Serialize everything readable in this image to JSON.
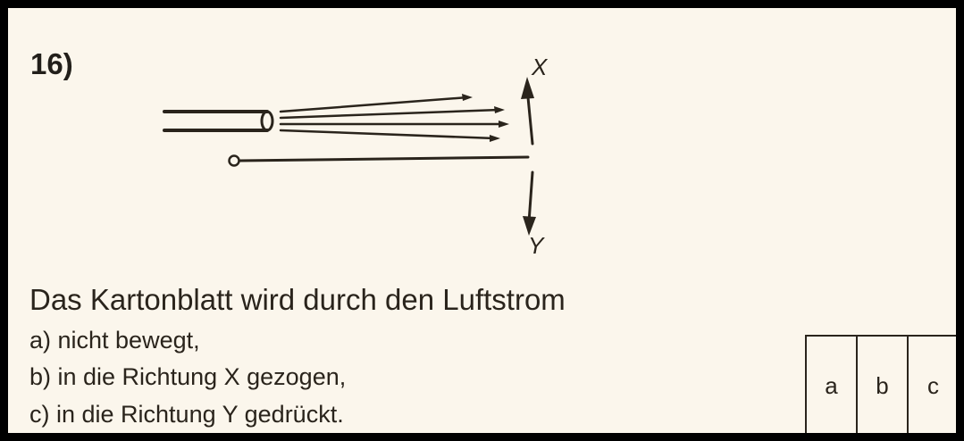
{
  "question": {
    "number": "16)",
    "stem": "Das Kartonblatt wird durch den Luftstrom",
    "options": [
      "a) nicht bewegt,",
      "b) in die Richtung X gezogen,",
      "c) in die Richtung Y gedrückt."
    ]
  },
  "diagram": {
    "label_x": "X",
    "label_y": "Y"
  },
  "answer_box": {
    "choices": [
      "a",
      "b",
      "c"
    ]
  }
}
